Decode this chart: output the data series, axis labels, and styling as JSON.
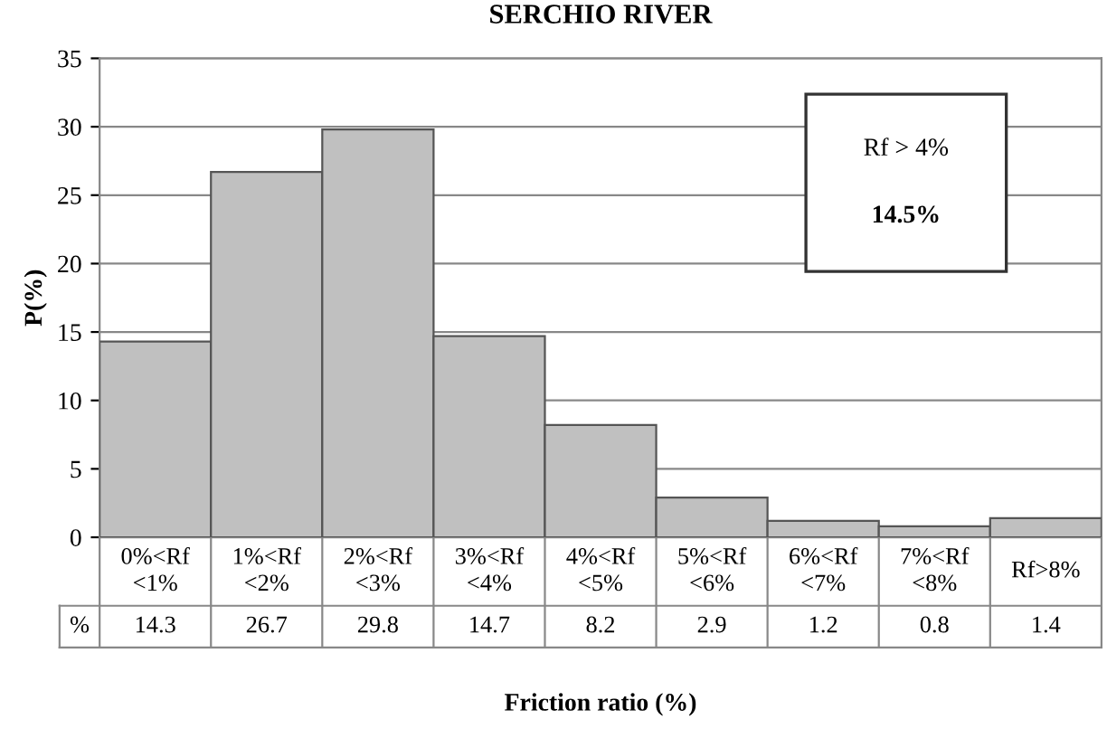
{
  "chart_data": {
    "type": "bar",
    "title": "SERCHIO RIVER",
    "xlabel": "Friction ratio (%)",
    "ylabel": "P(%)",
    "categories": [
      "0%<Rf <1%",
      "1%<Rf <2%",
      "2%<Rf <3%",
      "3%<Rf <4%",
      "4%<Rf <5%",
      "5%<Rf <6%",
      "6%<Rf <7%",
      "7%<Rf <8%",
      "Rf>8%"
    ],
    "values": [
      14.3,
      26.7,
      29.8,
      14.7,
      8.2,
      2.9,
      1.2,
      0.8,
      1.4
    ],
    "color": "#c0c0c0",
    "ylim": [
      0,
      35
    ],
    "yticks": [
      0,
      5,
      10,
      15,
      20,
      25,
      30,
      35
    ],
    "grid": "y",
    "data_labels": true,
    "annotations": [
      "%",
      "Rf > 4%",
      "14.5%"
    ]
  }
}
